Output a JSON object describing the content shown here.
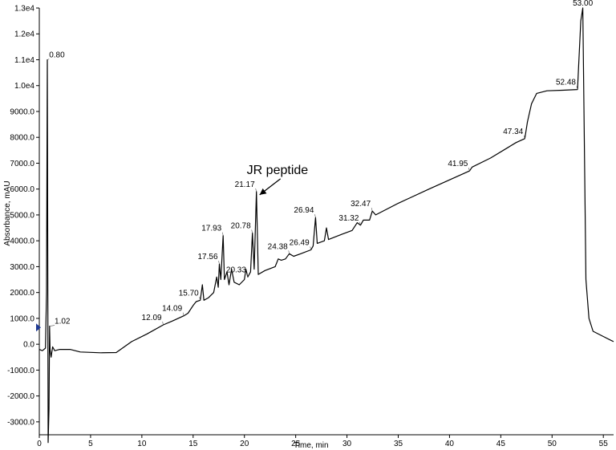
{
  "chart_data": {
    "type": "line",
    "title": "",
    "xlabel": "Time, min",
    "ylabel": "Absorbance, mAU",
    "xlim": [
      0,
      56
    ],
    "ylim": [
      -3500,
      13000
    ],
    "x_ticks": [
      0,
      5,
      10,
      15,
      20,
      25,
      30,
      35,
      40,
      45,
      50,
      55
    ],
    "x_tick_labels": [
      "0",
      "5",
      "10",
      "15",
      "20",
      "25",
      "30",
      "35",
      "40",
      "45",
      "50",
      "55"
    ],
    "y_ticks": [
      -3000,
      -2000,
      -1000,
      0,
      1000,
      2000,
      3000,
      4000,
      5000,
      6000,
      7000,
      8000,
      9000,
      10000,
      11000,
      12000,
      13000
    ],
    "y_tick_labels": [
      "-3000.0",
      "-2000.0",
      "-1000.0",
      "0.0",
      "1000.0",
      "2000.0",
      "3000.0",
      "4000.0",
      "5000.0",
      "6000.0",
      "7000.0",
      "8000.0",
      "9000.0",
      "1.0e4",
      "1.1e4",
      "1.2e4",
      "1.3e4"
    ],
    "grid": false,
    "series": [
      {
        "points": [
          [
            0.0,
            -200
          ],
          [
            0.3,
            -250
          ],
          [
            0.6,
            -150
          ],
          [
            0.7,
            2000
          ],
          [
            0.78,
            11000
          ],
          [
            0.82,
            4000
          ],
          [
            0.86,
            -3800
          ],
          [
            0.95,
            -2500
          ],
          [
            1.0,
            700
          ],
          [
            1.05,
            -200
          ],
          [
            1.15,
            -500
          ],
          [
            1.3,
            -100
          ],
          [
            1.5,
            -250
          ],
          [
            2.0,
            -200
          ],
          [
            3.0,
            -200
          ],
          [
            4.0,
            -300
          ],
          [
            6.0,
            -330
          ],
          [
            7.5,
            -320
          ],
          [
            9.0,
            100
          ],
          [
            10.5,
            400
          ],
          [
            12.09,
            750
          ],
          [
            13.0,
            900
          ],
          [
            14.09,
            1100
          ],
          [
            14.5,
            1200
          ],
          [
            15.0,
            1500
          ],
          [
            15.3,
            1650
          ],
          [
            15.7,
            1700
          ],
          [
            15.9,
            2300
          ],
          [
            16.05,
            1700
          ],
          [
            16.5,
            1800
          ],
          [
            17.0,
            2000
          ],
          [
            17.3,
            2600
          ],
          [
            17.45,
            2200
          ],
          [
            17.56,
            3100
          ],
          [
            17.7,
            2500
          ],
          [
            17.93,
            4200
          ],
          [
            18.05,
            2500
          ],
          [
            18.3,
            2800
          ],
          [
            18.5,
            2300
          ],
          [
            18.75,
            2900
          ],
          [
            19.0,
            2400
          ],
          [
            19.5,
            2300
          ],
          [
            20.0,
            2500
          ],
          [
            20.15,
            2900
          ],
          [
            20.33,
            2600
          ],
          [
            20.6,
            2800
          ],
          [
            20.78,
            4300
          ],
          [
            20.95,
            2900
          ],
          [
            21.17,
            5900
          ],
          [
            21.35,
            2700
          ],
          [
            22.0,
            2850
          ],
          [
            23.0,
            3000
          ],
          [
            23.3,
            3300
          ],
          [
            23.6,
            3250
          ],
          [
            24.0,
            3300
          ],
          [
            24.38,
            3500
          ],
          [
            24.8,
            3400
          ],
          [
            25.5,
            3500
          ],
          [
            26.49,
            3650
          ],
          [
            26.7,
            3800
          ],
          [
            26.94,
            4900
          ],
          [
            27.1,
            3900
          ],
          [
            27.8,
            4000
          ],
          [
            28.0,
            4500
          ],
          [
            28.2,
            4050
          ],
          [
            29.5,
            4250
          ],
          [
            30.5,
            4400
          ],
          [
            31.0,
            4700
          ],
          [
            31.32,
            4600
          ],
          [
            31.6,
            4800
          ],
          [
            32.2,
            4800
          ],
          [
            32.47,
            5150
          ],
          [
            32.8,
            5000
          ],
          [
            35.0,
            5450
          ],
          [
            38.0,
            6000
          ],
          [
            41.95,
            6700
          ],
          [
            42.2,
            6850
          ],
          [
            44.0,
            7200
          ],
          [
            46.5,
            7800
          ],
          [
            47.34,
            7950
          ],
          [
            47.6,
            8600
          ],
          [
            48.0,
            9300
          ],
          [
            48.5,
            9700
          ],
          [
            49.5,
            9800
          ],
          [
            51.0,
            9820
          ],
          [
            52.48,
            9850
          ],
          [
            52.8,
            12500
          ],
          [
            53.0,
            13000
          ],
          [
            53.3,
            2500
          ],
          [
            53.6,
            1000
          ],
          [
            54.0,
            500
          ],
          [
            55.0,
            300
          ],
          [
            56.0,
            100
          ]
        ]
      }
    ],
    "peak_labels": [
      {
        "text": "0.80",
        "x": 0.8,
        "y": 11000
      },
      {
        "text": "1.02",
        "x": 1.02,
        "y": 700
      },
      {
        "text": "12.09",
        "x": 12.09,
        "y": 750
      },
      {
        "text": "14.09",
        "x": 14.09,
        "y": 1100
      },
      {
        "text": "15.70",
        "x": 15.7,
        "y": 1700
      },
      {
        "text": "17.56",
        "x": 17.56,
        "y": 3100
      },
      {
        "text": "17.93",
        "x": 17.93,
        "y": 4200
      },
      {
        "text": "20.33",
        "x": 20.33,
        "y": 2600
      },
      {
        "text": "20.78",
        "x": 20.78,
        "y": 4300
      },
      {
        "text": "21.17",
        "x": 21.17,
        "y": 5900
      },
      {
        "text": "24.38",
        "x": 24.38,
        "y": 3500
      },
      {
        "text": "26.49",
        "x": 26.49,
        "y": 3650
      },
      {
        "text": "26.94",
        "x": 26.94,
        "y": 4900
      },
      {
        "text": "31.32",
        "x": 31.32,
        "y": 4600
      },
      {
        "text": "32.47",
        "x": 32.47,
        "y": 5150
      },
      {
        "text": "41.95",
        "x": 41.95,
        "y": 6700
      },
      {
        "text": "47.34",
        "x": 47.34,
        "y": 7950
      },
      {
        "text": "52.48",
        "x": 52.48,
        "y": 9850
      },
      {
        "text": "53.00",
        "x": 53.0,
        "y": 13000
      }
    ],
    "annotations": [
      {
        "text": "JR peptide",
        "points_to": [
          21.17,
          5900
        ]
      }
    ],
    "baseline_marker_y": 650,
    "line_color": "#000000",
    "marker_color": "#1f3a93"
  }
}
